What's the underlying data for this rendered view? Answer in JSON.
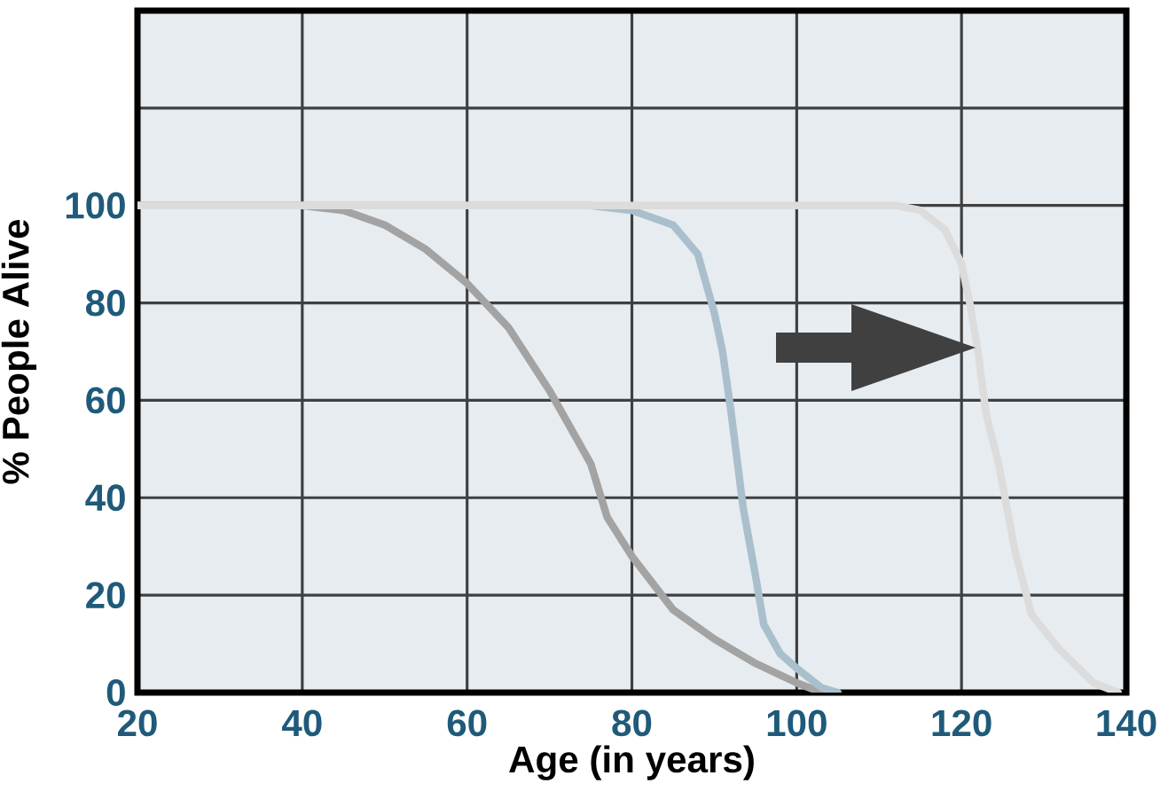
{
  "chart_data": {
    "type": "line",
    "xlabel": "Age (in years)",
    "ylabel": "% People Alive",
    "xlim": [
      20,
      140
    ],
    "ylim": [
      0,
      140
    ],
    "xticks": [
      20,
      40,
      60,
      80,
      100,
      120,
      140
    ],
    "yticks": [
      0,
      20,
      40,
      60,
      80,
      100,
      {
        "value": 120,
        "label": null
      }
    ],
    "grid": true,
    "series": [
      {
        "color": "#a3a3a3",
        "x": [
          20,
          40,
          45,
          50,
          55,
          60,
          65,
          70,
          75,
          77,
          80,
          85,
          90,
          95,
          100,
          103
        ],
        "values": [
          100,
          100,
          99,
          96,
          91,
          84,
          75,
          62,
          47,
          36,
          28,
          17,
          11,
          6,
          2,
          0
        ]
      },
      {
        "color": "#a9bfcc",
        "x": [
          20,
          75,
          80,
          85,
          88,
          90,
          91,
          92,
          93.5,
          95,
          96,
          98,
          100,
          103,
          105
        ],
        "values": [
          100,
          100,
          99,
          96,
          90,
          78,
          70,
          58,
          38,
          24,
          14,
          8,
          5,
          1,
          0
        ]
      },
      {
        "color": "#dcdcdc",
        "x": [
          20,
          112,
          115,
          118,
          120,
          121,
          122,
          123,
          124.5,
          126.5,
          128.5,
          131.8,
          136,
          139
        ],
        "values": [
          100,
          100,
          99,
          95,
          88,
          80,
          70,
          57,
          47,
          29,
          16,
          9,
          2,
          0
        ]
      }
    ]
  }
}
